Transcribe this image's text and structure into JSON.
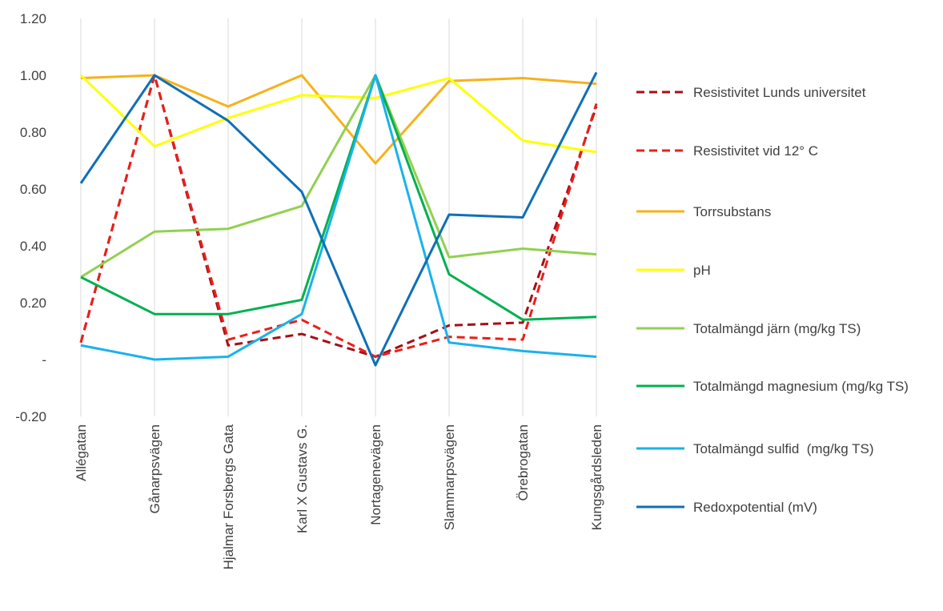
{
  "chart_data": {
    "type": "line",
    "categories": [
      "Allégatan",
      "Gånarpsvägen",
      "Hjalmar Forsbergs Gata",
      "Karl X Gustavs G.",
      "Nortagenevägen",
      "Slammarpsvägen",
      "Örebrogatan",
      "Kungsgårdsleden"
    ],
    "ylim": [
      -0.2,
      1.2
    ],
    "yticks": [
      {
        "value": -0.2,
        "label": "-0.20"
      },
      {
        "value": 0,
        "label": "-"
      },
      {
        "value": 0.2,
        "label": "0.20"
      },
      {
        "value": 0.4,
        "label": "0.40"
      },
      {
        "value": 0.6,
        "label": "0.60"
      },
      {
        "value": 0.8,
        "label": "0.80"
      },
      {
        "value": 1.0,
        "label": "1.00"
      },
      {
        "value": 1.2,
        "label": "1.20"
      }
    ],
    "grid": "vertical",
    "series": [
      {
        "name": "Resistivitet Lunds universitet",
        "color": "#a50f15",
        "dashed": true,
        "values": [
          0.06,
          1.0,
          0.05,
          0.09,
          0.01,
          0.12,
          0.13,
          0.89
        ]
      },
      {
        "name": "Resistivitet vid 12° C",
        "color": "#e8201a",
        "dashed": true,
        "values": [
          0.06,
          1.0,
          0.07,
          0.14,
          0.01,
          0.08,
          0.07,
          0.9
        ]
      },
      {
        "name": "Torrsubstans",
        "color": "#f5b21b",
        "values": [
          0.99,
          1.0,
          0.89,
          1.0,
          0.69,
          0.98,
          0.99,
          0.97
        ]
      },
      {
        "name": "pH",
        "color": "#ffff00",
        "values": [
          1.0,
          0.75,
          0.85,
          0.93,
          0.92,
          0.99,
          0.77,
          0.73
        ]
      },
      {
        "name": "Totalmängd järn (mg/kg TS)",
        "color": "#92d050",
        "values": [
          0.29,
          0.45,
          0.46,
          0.54,
          1.0,
          0.36,
          0.39,
          0.37
        ]
      },
      {
        "name": "Totalmängd magnesium (mg/kg TS)",
        "color": "#00b050",
        "values": [
          0.29,
          0.16,
          0.16,
          0.21,
          1.0,
          0.3,
          0.14,
          0.15
        ]
      },
      {
        "name": "Totalmängd sulfid  (mg/kg TS)",
        "color": "#1ab2ea",
        "values": [
          0.05,
          0.0,
          0.01,
          0.16,
          1.0,
          0.06,
          0.03,
          0.01
        ]
      },
      {
        "name": "Redoxpotential (mV)",
        "color": "#0f6fb8",
        "values": [
          0.62,
          1.0,
          0.84,
          0.59,
          -0.02,
          0.51,
          0.5,
          1.01
        ]
      }
    ]
  }
}
